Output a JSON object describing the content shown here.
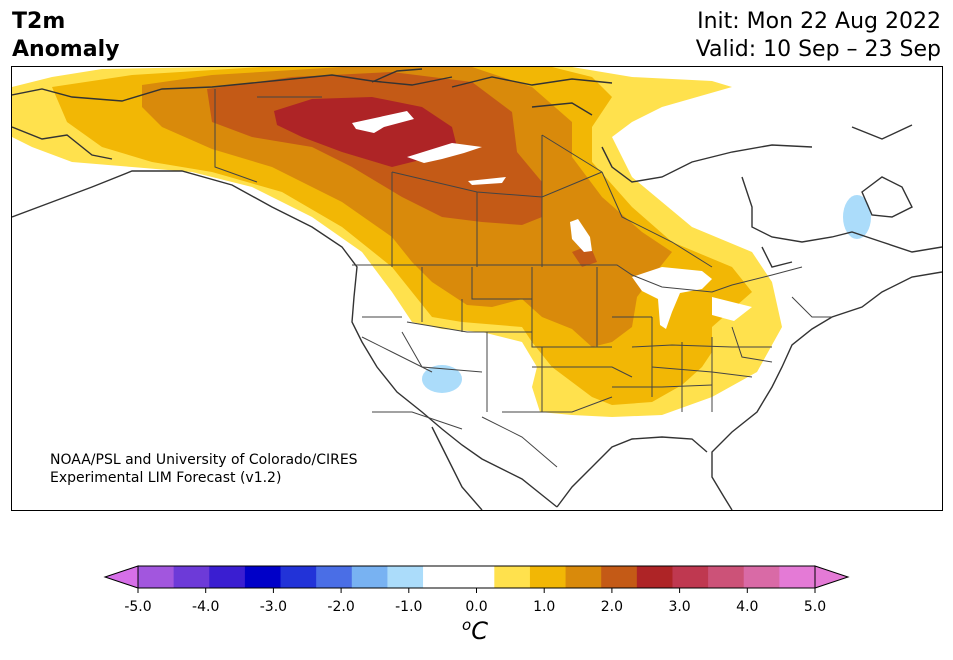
{
  "header": {
    "title_line1": "T2m",
    "title_line2": "Anomaly",
    "init": "Init: Mon 22 Aug 2022",
    "valid": "Valid: 10 Sep – 23 Sep"
  },
  "credit": {
    "line1": "NOAA/PSL and University of Colorado/CIRES",
    "line2": "Experimental LIM Forecast (v1.2)"
  },
  "colorbar": {
    "unit_sup": "o",
    "unit": "C",
    "ticks": [
      "-5.0",
      "-4.0",
      "-3.0",
      "-2.0",
      "-1.0",
      "0.0",
      "1.0",
      "2.0",
      "3.0",
      "4.0",
      "5.0"
    ],
    "levels": [
      -5.0,
      -4.5,
      -4.0,
      -3.5,
      -3.0,
      -2.5,
      -2.0,
      -1.5,
      -1.0,
      -0.5,
      0.5,
      1.0,
      1.5,
      2.0,
      2.5,
      3.0,
      3.5,
      4.0,
      4.5,
      5.0
    ],
    "colors": [
      "#a256de",
      "#6d3ad8",
      "#3a1ed1",
      "#0000c8",
      "#2233d8",
      "#4a6ee6",
      "#78b2f2",
      "#abdcfa",
      "#ffffff",
      "#ffffff",
      "#ffe14d",
      "#f2b705",
      "#d98a0b",
      "#c45a16",
      "#ae2426",
      "#bf3850",
      "#cc5278",
      "#d96aa6",
      "#e47ad6"
    ],
    "under_color": "#d66fe8",
    "over_color": "#e47ad6"
  },
  "map": {
    "colors": {
      "anom_0_5": "#ffe14d",
      "anom_1_0": "#f2b705",
      "anom_1_5": "#d98a0b",
      "anom_2_0": "#c45a16",
      "anom_2_5": "#ae2426",
      "cool": "#abdcfa",
      "border": "#444444",
      "coast": "#333333"
    }
  }
}
